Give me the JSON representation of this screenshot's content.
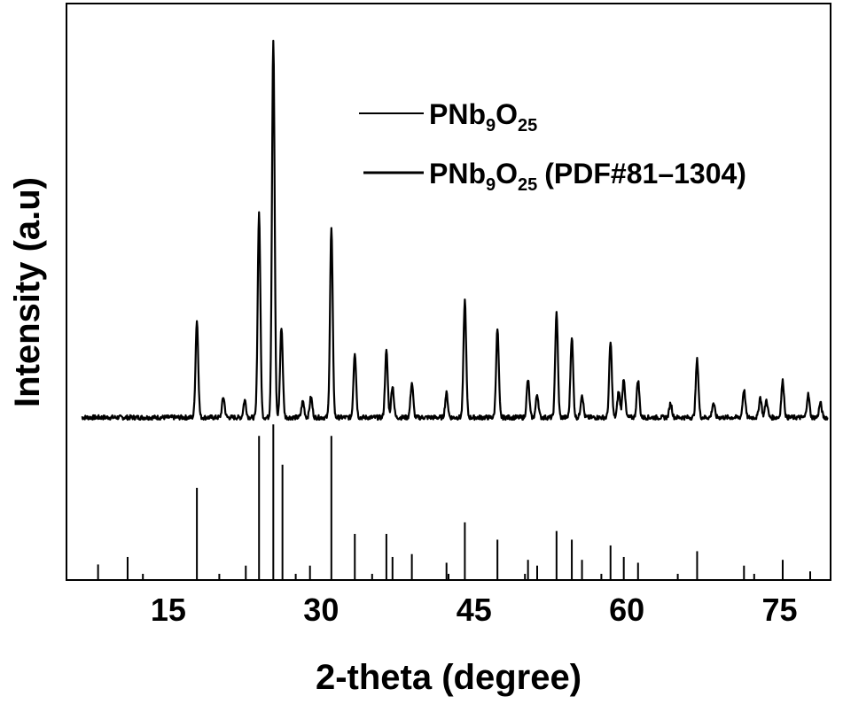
{
  "chart_data": {
    "type": "line",
    "xlabel": "2-theta (degree)",
    "ylabel": "Intensity (a.u)",
    "xlim": [
      5,
      80
    ],
    "xticks": [
      15,
      30,
      45,
      60,
      75
    ],
    "xtick_labels": [
      "15",
      "30",
      "45",
      "60",
      "75"
    ],
    "ylim": [
      0,
      1
    ],
    "grid": false,
    "legend_position": "top-center",
    "legend": [
      {
        "base": "PNb",
        "sub1": "9",
        "mid": "O",
        "sub2": "25",
        "suffix": ""
      },
      {
        "base": "PNb",
        "sub1": "9",
        "mid": "O",
        "sub2": "25",
        "suffix": "(PDF#81–1304)"
      }
    ],
    "series": [
      {
        "name": "PNb9O25",
        "kind": "profile",
        "baseline": 0.282,
        "peaks": [
          {
            "x": 17.8,
            "y": 0.168
          },
          {
            "x": 20.4,
            "y": 0.035
          },
          {
            "x": 22.5,
            "y": 0.03
          },
          {
            "x": 23.9,
            "y": 0.355
          },
          {
            "x": 25.3,
            "y": 0.655
          },
          {
            "x": 26.1,
            "y": 0.157
          },
          {
            "x": 28.2,
            "y": 0.028
          },
          {
            "x": 29.0,
            "y": 0.035
          },
          {
            "x": 31.0,
            "y": 0.328
          },
          {
            "x": 33.3,
            "y": 0.113
          },
          {
            "x": 36.4,
            "y": 0.115
          },
          {
            "x": 37.0,
            "y": 0.055
          },
          {
            "x": 38.9,
            "y": 0.06
          },
          {
            "x": 42.3,
            "y": 0.042
          },
          {
            "x": 44.1,
            "y": 0.203
          },
          {
            "x": 47.3,
            "y": 0.153
          },
          {
            "x": 50.3,
            "y": 0.065
          },
          {
            "x": 51.2,
            "y": 0.04
          },
          {
            "x": 53.1,
            "y": 0.183
          },
          {
            "x": 54.6,
            "y": 0.14
          },
          {
            "x": 55.6,
            "y": 0.04
          },
          {
            "x": 58.4,
            "y": 0.13
          },
          {
            "x": 59.2,
            "y": 0.045
          },
          {
            "x": 59.7,
            "y": 0.068
          },
          {
            "x": 61.1,
            "y": 0.065
          },
          {
            "x": 64.3,
            "y": 0.025
          },
          {
            "x": 66.9,
            "y": 0.1
          },
          {
            "x": 68.5,
            "y": 0.025
          },
          {
            "x": 71.5,
            "y": 0.048
          },
          {
            "x": 73.1,
            "y": 0.035
          },
          {
            "x": 73.7,
            "y": 0.03
          },
          {
            "x": 75.3,
            "y": 0.063
          },
          {
            "x": 77.8,
            "y": 0.04
          },
          {
            "x": 79.0,
            "y": 0.025
          }
        ]
      },
      {
        "name": "PNb9O25 (PDF#81-1304)",
        "kind": "sticks",
        "baseline": 0.0,
        "sticks": [
          {
            "x": 8.1,
            "y": 0.027
          },
          {
            "x": 11.0,
            "y": 0.04
          },
          {
            "x": 17.8,
            "y": 0.16
          },
          {
            "x": 22.6,
            "y": 0.025
          },
          {
            "x": 23.9,
            "y": 0.25
          },
          {
            "x": 25.3,
            "y": 0.27
          },
          {
            "x": 26.2,
            "y": 0.2
          },
          {
            "x": 28.9,
            "y": 0.025
          },
          {
            "x": 31.0,
            "y": 0.25
          },
          {
            "x": 33.3,
            "y": 0.08
          },
          {
            "x": 36.4,
            "y": 0.08
          },
          {
            "x": 37.0,
            "y": 0.04
          },
          {
            "x": 38.9,
            "y": 0.045
          },
          {
            "x": 42.3,
            "y": 0.03
          },
          {
            "x": 44.1,
            "y": 0.1
          },
          {
            "x": 47.3,
            "y": 0.07
          },
          {
            "x": 50.3,
            "y": 0.035
          },
          {
            "x": 51.2,
            "y": 0.025
          },
          {
            "x": 53.1,
            "y": 0.085
          },
          {
            "x": 54.6,
            "y": 0.07
          },
          {
            "x": 55.6,
            "y": 0.035
          },
          {
            "x": 58.4,
            "y": 0.06
          },
          {
            "x": 59.7,
            "y": 0.04
          },
          {
            "x": 61.1,
            "y": 0.03
          },
          {
            "x": 66.9,
            "y": 0.05
          },
          {
            "x": 71.5,
            "y": 0.025
          },
          {
            "x": 75.3,
            "y": 0.035
          },
          {
            "x": 78.0,
            "y": 0.015
          }
        ]
      }
    ]
  }
}
